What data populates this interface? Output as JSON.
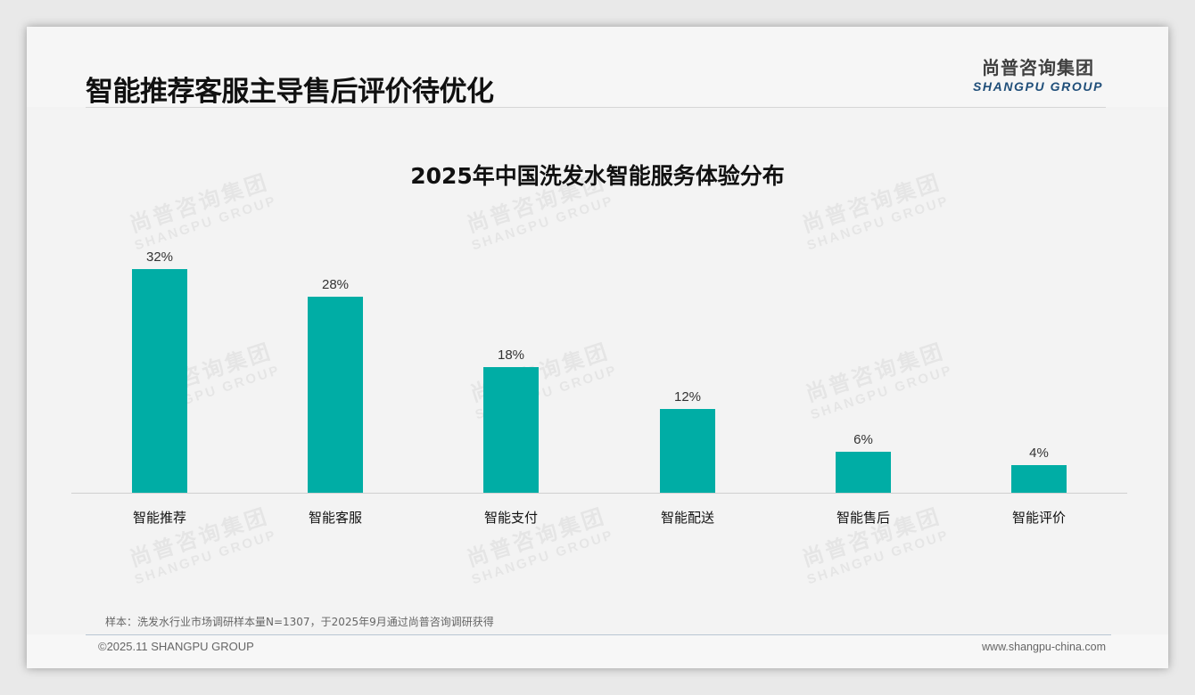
{
  "page": {
    "title": "智能推荐客服主导售后评价待优化",
    "logo": {
      "cn": "尚普咨询集团",
      "en": "SHANGPU GROUP"
    },
    "watermark": {
      "cn": "尚普咨询集团",
      "en": "SHANGPU GROUP"
    },
    "note": "样本：洗发水行业市场调研样本量N=1307，于2025年9月通过尚普咨询调研获得",
    "footer": {
      "copyright": "©2025.11 SHANGPU GROUP",
      "website": "www.shangpu-china.com"
    },
    "colors": {
      "bar": "#00ada5",
      "title": "#111111",
      "logo_en": "#1f4e79"
    }
  },
  "chart_data": {
    "type": "bar",
    "title": "2025年中国洗发水智能服务体验分布",
    "categories": [
      "智能推荐",
      "智能客服",
      "智能支付",
      "智能配送",
      "智能售后",
      "智能评价"
    ],
    "values": [
      32,
      28,
      18,
      12,
      6,
      4
    ],
    "value_labels": [
      "32%",
      "28%",
      "18%",
      "12%",
      "6%",
      "4%"
    ],
    "unit": "%",
    "xlabel": "",
    "ylabel": "",
    "ylim": [
      0,
      35
    ],
    "grid": false,
    "legend": null,
    "data_labels": true
  }
}
